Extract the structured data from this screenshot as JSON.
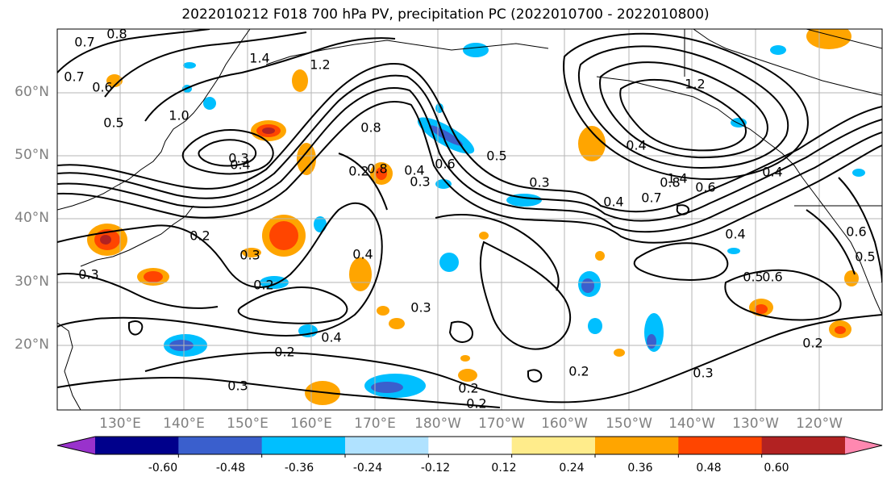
{
  "title": "2022010212 F018 700 hPa PV, precipitation PC (2022010700 - 2022010800)",
  "lat_labels": [
    "60°N",
    "50°N",
    "40°N",
    "30°N",
    "20°N"
  ],
  "lon_labels": [
    "130°E",
    "140°E",
    "150°E",
    "160°E",
    "170°E",
    "180°W",
    "170°W",
    "160°W",
    "150°W",
    "140°W",
    "130°W",
    "120°W"
  ],
  "colorbar": {
    "colors": [
      "#9932cc",
      "#00008b",
      "#3a5fcd",
      "#00bfff",
      "#b0e2ff",
      "#ffffff",
      "#ffec8b",
      "#ffa500",
      "#ff4500",
      "#b22222",
      "#ff88b0"
    ],
    "tick_labels": [
      "-0.60",
      "-0.48",
      "-0.36",
      "-0.24",
      "-0.12",
      "0.12",
      "0.24",
      "0.36",
      "0.48",
      "0.60"
    ]
  },
  "contour_labels": [
    "0.7",
    "0.8",
    "1.4",
    "1.2",
    "0.6",
    "0.5",
    "0.7",
    "0.3",
    "0.4",
    "1.0",
    "0.8",
    "0.6",
    "0.3",
    "0.2",
    "0.2",
    "0.3",
    "0.4",
    "0.3",
    "0.2",
    "0.3",
    "0.2",
    "0.3",
    "0.5",
    "0.4",
    "1.2",
    "0.8",
    "1.4",
    "0.4",
    "0.8",
    "0.6",
    "0.7",
    "0.4",
    "0.4",
    "0.3",
    "0.5",
    "0.4",
    "0.6",
    "0.2",
    "0.2",
    "0.3",
    "0.5",
    "0.6",
    "0.2",
    "0.2",
    "0.4"
  ]
}
